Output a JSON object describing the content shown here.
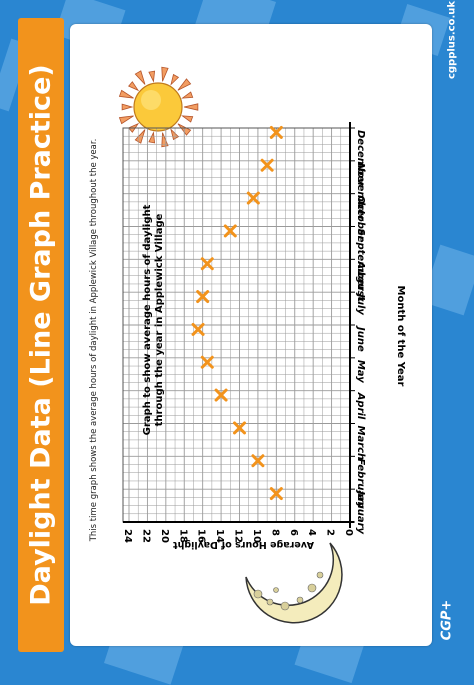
{
  "banner": {
    "title": "Daylight Data (Line Graph Practice)"
  },
  "brand": {
    "url": "cgpplus.co.uk",
    "logo": "CGP+"
  },
  "intro": "This time graph shows the average hours of daylight in Applewick Village throughout the year.",
  "colors": {
    "banner": "#f2931c",
    "background": "#2a86d1",
    "marker": "#f2931c",
    "grid": "#888888"
  },
  "icons": {
    "sun": "sun-icon",
    "moon": "moon-icon"
  },
  "chart_data": {
    "type": "scatter",
    "title": "Graph to show average hours of daylight through the year in Applewick Village",
    "xlabel": "Month of the Year",
    "ylabel": "Average Hours of Daylight",
    "categories": [
      "January",
      "February",
      "March",
      "April",
      "May",
      "June",
      "July",
      "August",
      "September",
      "October",
      "November",
      "December"
    ],
    "values": [
      8,
      10,
      12,
      14,
      15.5,
      16.5,
      16,
      15.5,
      13,
      10.5,
      9,
      8
    ],
    "ylim": [
      0,
      24
    ],
    "yticks": [
      0,
      2,
      4,
      6,
      8,
      10,
      12,
      14,
      16,
      18,
      20,
      22,
      24
    ],
    "grid": true,
    "orientation": "rotated-90"
  }
}
